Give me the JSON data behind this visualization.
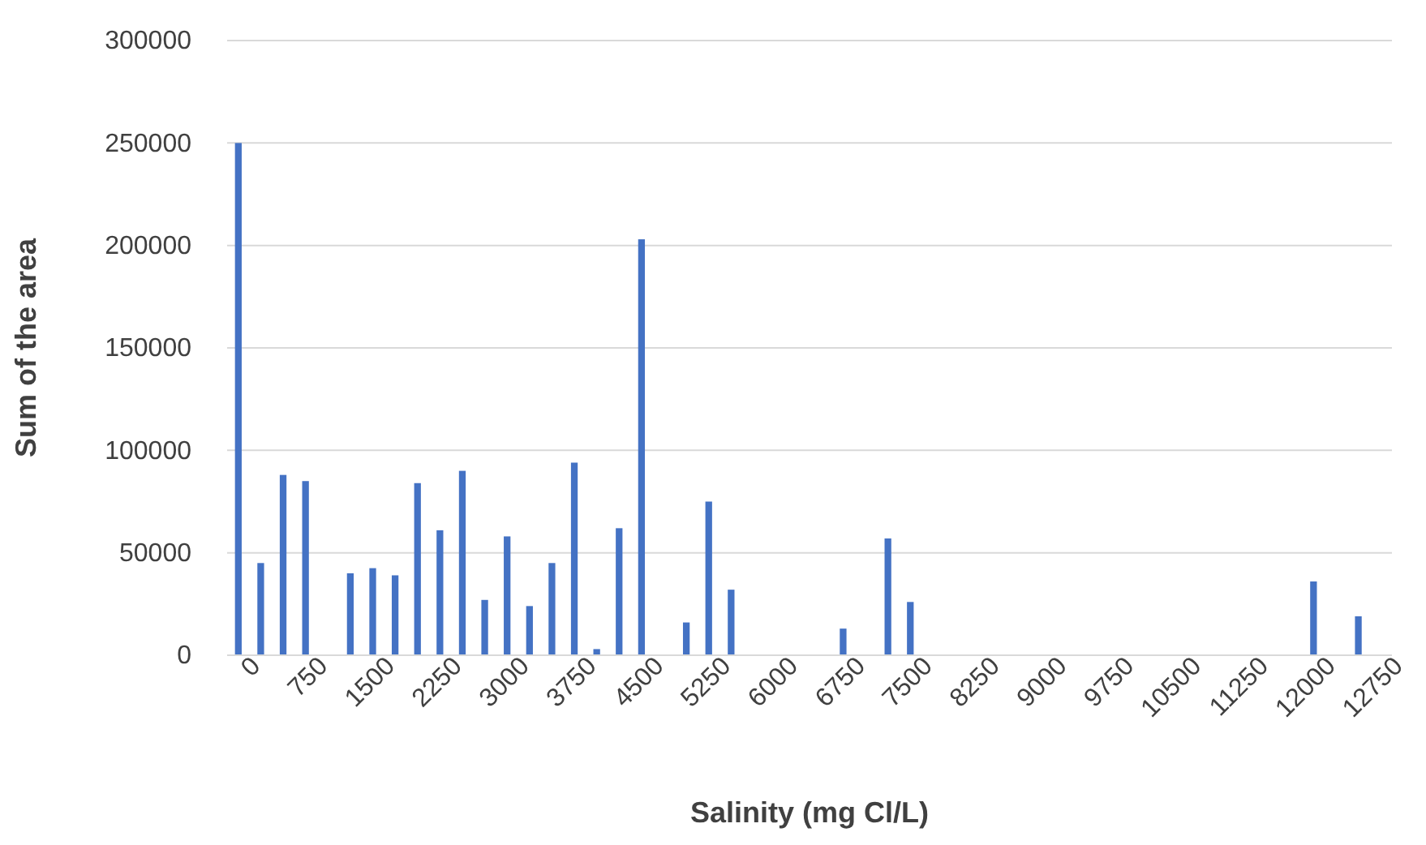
{
  "chart_data": {
    "type": "bar",
    "xlabel": "Salinity (mg Cl/L)",
    "ylabel": "Sum of the area",
    "categories": [
      "0",
      null,
      null,
      "750",
      null,
      null,
      "1500",
      null,
      null,
      "2250",
      null,
      null,
      "3000",
      null,
      null,
      "3750",
      null,
      null,
      "4500",
      null,
      null,
      "5250",
      null,
      null,
      "6000",
      null,
      null,
      "6750",
      null,
      null,
      "7500",
      null,
      null,
      "8250",
      null,
      null,
      "9000",
      null,
      null,
      "9750",
      null,
      null,
      "10500",
      null,
      null,
      "11250",
      null,
      null,
      "12000",
      null,
      null,
      "12750"
    ],
    "values": [
      250000,
      45000,
      88000,
      85000,
      null,
      40000,
      42500,
      39000,
      84000,
      61000,
      90000,
      27000,
      58000,
      24000,
      45000,
      94000,
      3000,
      62000,
      203000,
      null,
      16000,
      75000,
      32000,
      null,
      null,
      null,
      null,
      13000,
      null,
      57000,
      26000,
      null,
      null,
      null,
      null,
      null,
      null,
      null,
      null,
      null,
      null,
      null,
      null,
      null,
      null,
      null,
      null,
      null,
      36000,
      null,
      19000,
      null
    ],
    "color": "#4472c4",
    "ylim": [
      0,
      300000
    ],
    "yticks": [
      0,
      50000,
      100000,
      150000,
      200000,
      250000,
      300000
    ],
    "grid": "y"
  }
}
